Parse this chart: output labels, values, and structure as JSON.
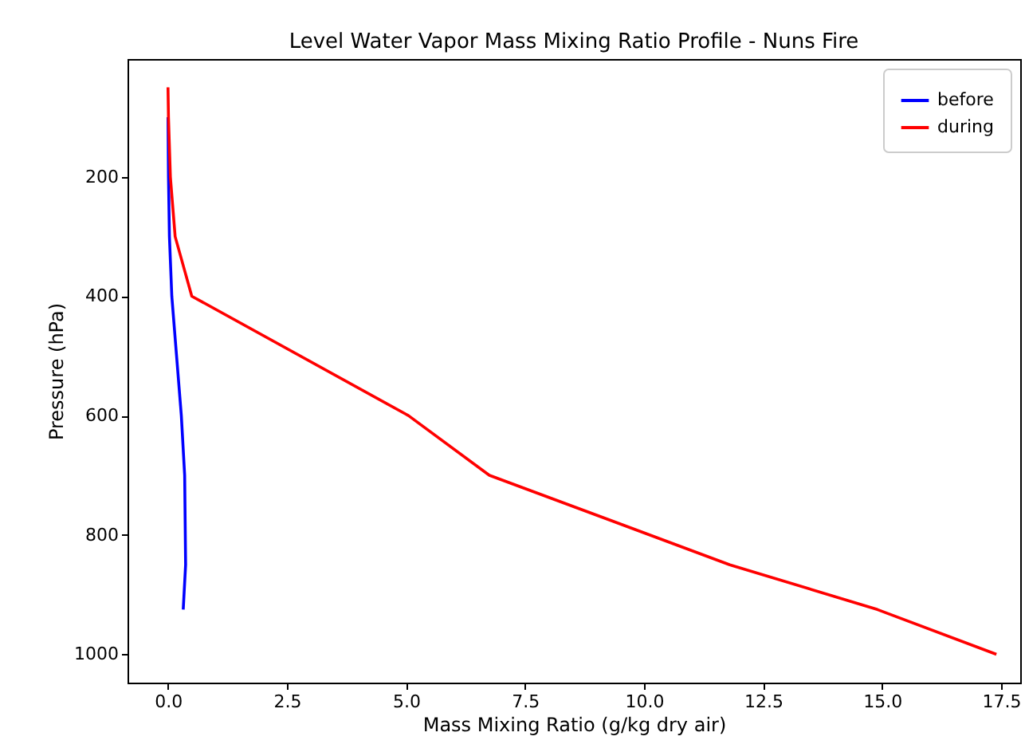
{
  "chart_data": {
    "type": "line",
    "title": "Level Water Vapor Mass Mixing Ratio Profile - Nuns Fire",
    "xlabel": "Mass Mixing Ratio (g/kg dry air)",
    "ylabel": "Pressure (hPa)",
    "series": [
      {
        "name": "before",
        "color": "#0000ff",
        "x": [
          0,
          0.01,
          0.03,
          0.08,
          0.18,
          0.28,
          0.35,
          0.37,
          0.32
        ],
        "values": [
          100,
          200,
          300,
          400,
          500,
          600,
          700,
          850,
          925
        ]
      },
      {
        "name": "during",
        "color": "#ff0000",
        "x": [
          0,
          0.01,
          0.05,
          0.15,
          0.5,
          5.05,
          6.75,
          11.8,
          14.9,
          17.4
        ],
        "values": [
          50,
          100,
          200,
          300,
          400,
          600,
          700,
          850,
          925,
          1000
        ]
      }
    ],
    "xlim": [
      -0.85,
      17.9
    ],
    "xticks": [
      {
        "value": 0,
        "label": "0.0"
      },
      {
        "value": 2.5,
        "label": "2.5"
      },
      {
        "value": 5,
        "label": "5.0"
      },
      {
        "value": 7.5,
        "label": "7.5"
      },
      {
        "value": 10,
        "label": "10.0"
      },
      {
        "value": 12.5,
        "label": "12.5"
      },
      {
        "value": 15,
        "label": "15.0"
      },
      {
        "value": 17.5,
        "label": "17.5"
      }
    ],
    "ylim": [
      1047.5,
      2.5
    ],
    "yticks": [
      200,
      400,
      600,
      800,
      1000
    ],
    "grid": false,
    "legend": "top right",
    "marker": "none",
    "line_style": "solid"
  }
}
